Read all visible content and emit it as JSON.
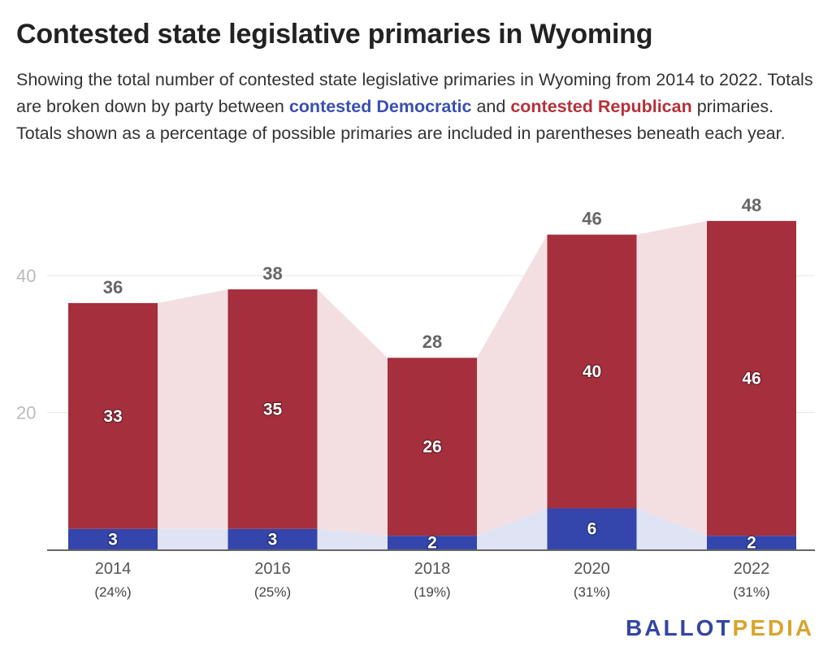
{
  "header": {
    "title": "Contested state legislative primaries in Wyoming",
    "subtitle_parts": [
      "Showing the total number of contested state legislative primaries in Wyoming from 2014 to 2022. Totals are broken down by party between ",
      "contested Democratic",
      " and ",
      "contested Republican",
      " primaries. Totals shown as a percentage of possible primaries are included in parentheses beneath each year."
    ]
  },
  "logo": {
    "part1": "BALLOT",
    "part2": "PEDIA"
  },
  "colors": {
    "democratic": "#3446ab",
    "republican": "#a52f3c",
    "democratic_area": "#dfe3f4",
    "republican_area": "#f3dfe1",
    "grid": "#e6e6e6",
    "axis": "#333333",
    "tick_label": "#bbbbbb"
  },
  "chart_data": {
    "type": "bar",
    "stacked": true,
    "categories": [
      "2014",
      "2016",
      "2018",
      "2020",
      "2022"
    ],
    "category_sublabels": [
      "(24%)",
      "(25%)",
      "(19%)",
      "(31%)",
      "(31%)"
    ],
    "series": [
      {
        "name": "contested Democratic",
        "values": [
          3,
          3,
          2,
          6,
          2
        ]
      },
      {
        "name": "contested Republican",
        "values": [
          33,
          35,
          26,
          40,
          46
        ]
      }
    ],
    "totals": [
      36,
      38,
      28,
      46,
      48
    ],
    "yticks": [
      20,
      40
    ],
    "ylim": [
      0,
      48
    ],
    "grid": true,
    "connector_areas": true
  }
}
